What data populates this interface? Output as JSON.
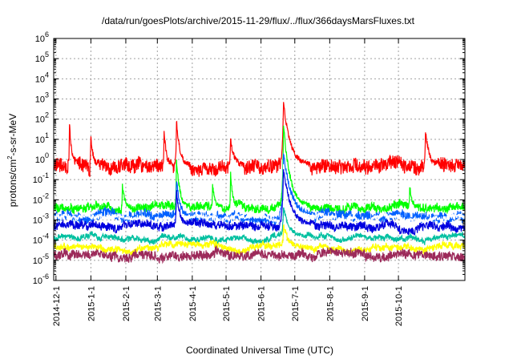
{
  "chart_data": {
    "type": "line",
    "title": "/data/run/goesPlots/archive/2015-11-29/flux/../flux/366daysMarsFluxes.txt",
    "xlabel": "Coordinated Universal Time (UTC)",
    "ylabel_parts": {
      "base": "protons/cm",
      "sup": "2",
      "rest": "-s-sr-MeV"
    },
    "yscale": "log",
    "ylim": [
      1e-06,
      1000000.0
    ],
    "y_ticks": [
      {
        "base": "10",
        "exp": "-6",
        "value": 1e-06
      },
      {
        "base": "10",
        "exp": "-5",
        "value": 1e-05
      },
      {
        "base": "10",
        "exp": "-4",
        "value": 0.0001
      },
      {
        "base": "10",
        "exp": "-3",
        "value": 0.001
      },
      {
        "base": "10",
        "exp": "-2",
        "value": 0.01
      },
      {
        "base": "10",
        "exp": "-1",
        "value": 0.1
      },
      {
        "base": "10",
        "exp": "0",
        "value": 1
      },
      {
        "base": "10",
        "exp": "1",
        "value": 10
      },
      {
        "base": "10",
        "exp": "2",
        "value": 100
      },
      {
        "base": "10",
        "exp": "3",
        "value": 1000
      },
      {
        "base": "10",
        "exp": "4",
        "value": 10000
      },
      {
        "base": "10",
        "exp": "5",
        "value": 100000
      },
      {
        "base": "10",
        "exp": "6",
        "value": 1000000
      }
    ],
    "xlim": [
      "2014-11-29",
      "2015-11-29"
    ],
    "x_ticks": [
      "2014-12-1",
      "2015-1-1",
      "2015-2-1",
      "2015-3-1",
      "2015-4-1",
      "2015-5-1",
      "2015-6-1",
      "2015-7-1",
      "2015-8-1",
      "2015-9-1",
      "2015-10-1"
    ],
    "x_tick_dates": [
      "2014-12-01",
      "2015-01-01",
      "2015-02-01",
      "2015-03-01",
      "2015-04-01",
      "2015-05-01",
      "2015-06-01",
      "2015-07-01",
      "2015-08-01",
      "2015-09-01",
      "2015-10-01"
    ],
    "grid": true,
    "series": [
      {
        "color": "#ff0000",
        "baseline": 0.5,
        "spread_decades": 0.35,
        "spikes": [
          {
            "date": "2014-12-13",
            "peak": 60,
            "width_days": 2
          },
          {
            "date": "2015-01-01",
            "peak": 15,
            "width_days": 2
          },
          {
            "date": "2015-03-07",
            "peak": 30,
            "width_days": 2
          },
          {
            "date": "2015-03-18",
            "peak": 80,
            "width_days": 3
          },
          {
            "date": "2015-05-05",
            "peak": 10,
            "width_days": 3
          },
          {
            "date": "2015-06-21",
            "peak": 700,
            "width_days": 6
          },
          {
            "date": "2015-10-25",
            "peak": 30,
            "width_days": 3
          }
        ]
      },
      {
        "color": "#00ff00",
        "baseline": 0.004,
        "spread_decades": 0.2,
        "spikes": [
          {
            "date": "2015-01-29",
            "peak": 0.05,
            "width_days": 2
          },
          {
            "date": "2015-03-18",
            "peak": 1,
            "width_days": 3
          },
          {
            "date": "2015-04-19",
            "peak": 0.06,
            "width_days": 2
          },
          {
            "date": "2015-05-05",
            "peak": 0.2,
            "width_days": 2
          },
          {
            "date": "2015-06-21",
            "peak": 50,
            "width_days": 6
          },
          {
            "date": "2015-10-11",
            "peak": 0.05,
            "width_days": 2
          }
        ]
      },
      {
        "color": "#0060ff",
        "baseline": 0.0015,
        "spread_decades": 0.25,
        "spikes": [
          {
            "date": "2015-03-18",
            "peak": 0.1,
            "width_days": 3
          },
          {
            "date": "2015-06-21",
            "peak": 2,
            "width_days": 7
          }
        ]
      },
      {
        "color": "#ffffff",
        "baseline": 0.0012,
        "spread_decades": 0.12,
        "spikes": [
          {
            "date": "2015-06-21",
            "peak": 0.5,
            "width_days": 6
          }
        ]
      },
      {
        "color": "#0000e0",
        "baseline": 0.0005,
        "spread_decades": 0.2,
        "spikes": [
          {
            "date": "2015-03-18",
            "peak": 0.03,
            "width_days": 3
          },
          {
            "date": "2015-06-21",
            "peak": 0.3,
            "width_days": 7
          }
        ]
      },
      {
        "color": "#00c0a0",
        "baseline": 0.00013,
        "spread_decades": 0.12,
        "spikes": [
          {
            "date": "2015-06-21",
            "peak": 0.005,
            "width_days": 5
          }
        ]
      },
      {
        "color": "#ffff00",
        "baseline": 4.5e-05,
        "spread_decades": 0.15,
        "spikes": [
          {
            "date": "2015-06-21",
            "peak": 0.0006,
            "width_days": 4
          }
        ]
      },
      {
        "color": "#9c2a5a",
        "baseline": 1.8e-05,
        "spread_decades": 0.22,
        "spikes": []
      }
    ]
  }
}
